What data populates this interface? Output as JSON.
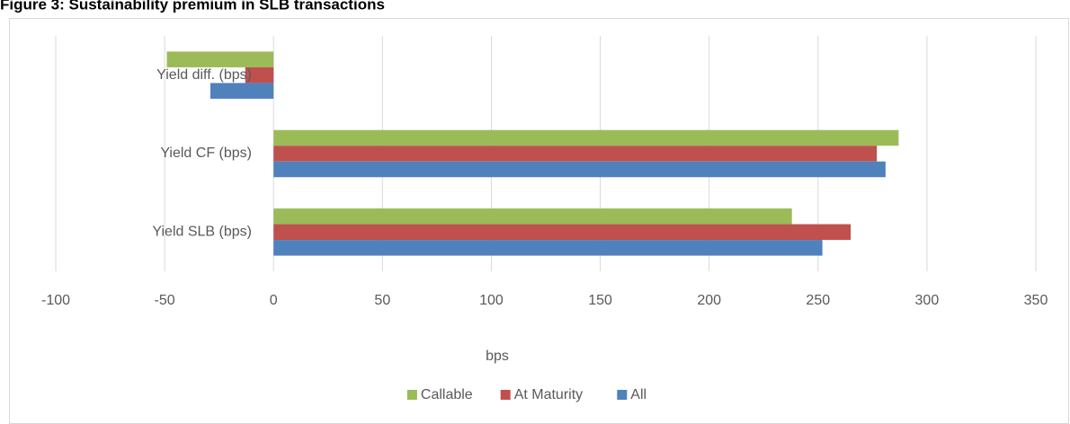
{
  "chart_data": {
    "type": "hbar",
    "title": "Figure 3: Sustainability premium in SLB transactions",
    "categories": [
      "Yield diff. (bps)",
      "Yield CF (bps)",
      "Yield SLB (bps)"
    ],
    "series": [
      {
        "name": "Callable",
        "color": "#9bbb59",
        "values": [
          -49,
          287,
          238
        ]
      },
      {
        "name": "At Maturity",
        "color": "#c0504d",
        "values": [
          -13,
          277,
          265
        ]
      },
      {
        "name": "All",
        "color": "#4f81bd",
        "values": [
          -29,
          281,
          252
        ]
      }
    ],
    "xlabel": "bps",
    "xlim": [
      -100,
      350
    ],
    "xticks": [
      -100,
      -50,
      0,
      50,
      100,
      150,
      200,
      250,
      300,
      350
    ],
    "grid": true,
    "legend": "bottom"
  }
}
